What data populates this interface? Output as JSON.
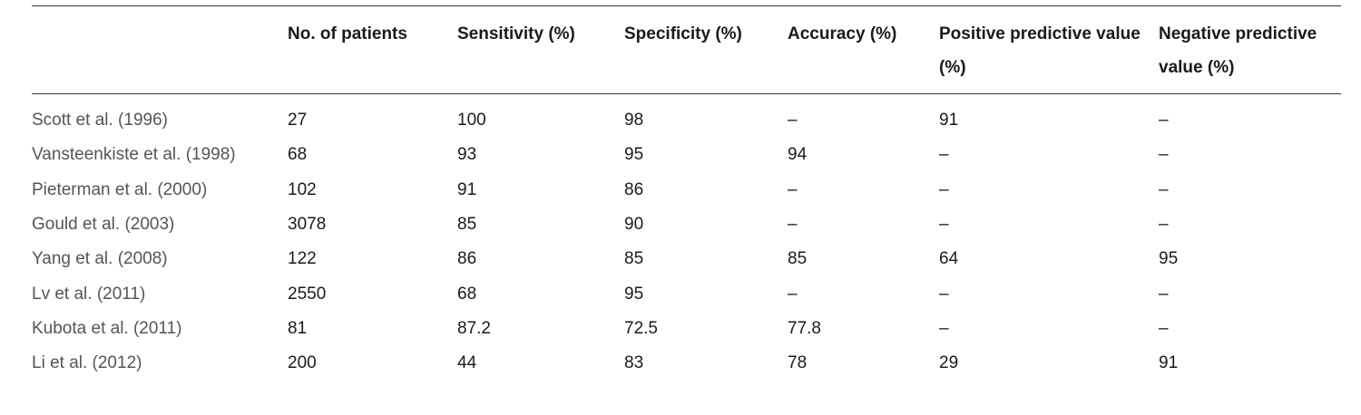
{
  "table": {
    "columns": [
      "",
      "No. of patients",
      "Sensitivity (%)",
      "Specificity (%)",
      "Accuracy (%)",
      "Positive predictive value (%)",
      "Negative predictive value (%)"
    ],
    "rows": [
      [
        "Scott et al. (1996)",
        "27",
        "100",
        "98",
        "–",
        "91",
        "–"
      ],
      [
        "Vansteenkiste et al. (1998)",
        "68",
        "93",
        "95",
        "94",
        "–",
        "–"
      ],
      [
        "Pieterman et al. (2000)",
        "102",
        "91",
        "86",
        "–",
        "–",
        "–"
      ],
      [
        "Gould et al. (2003)",
        "3078",
        "85",
        "90",
        "–",
        "–",
        "–"
      ],
      [
        "Yang et al. (2008)",
        "122",
        "86",
        "85",
        "85",
        "64",
        "95"
      ],
      [
        "Lv et al. (2011)",
        "2550",
        "68",
        "95",
        "–",
        "–",
        "–"
      ],
      [
        "Kubota et al. (2011)",
        "81",
        "87.2",
        "72.5",
        "77.8",
        "–",
        "–"
      ],
      [
        "Li et al. (2012)",
        "200",
        "44",
        "83",
        "78",
        "29",
        "91"
      ]
    ]
  }
}
